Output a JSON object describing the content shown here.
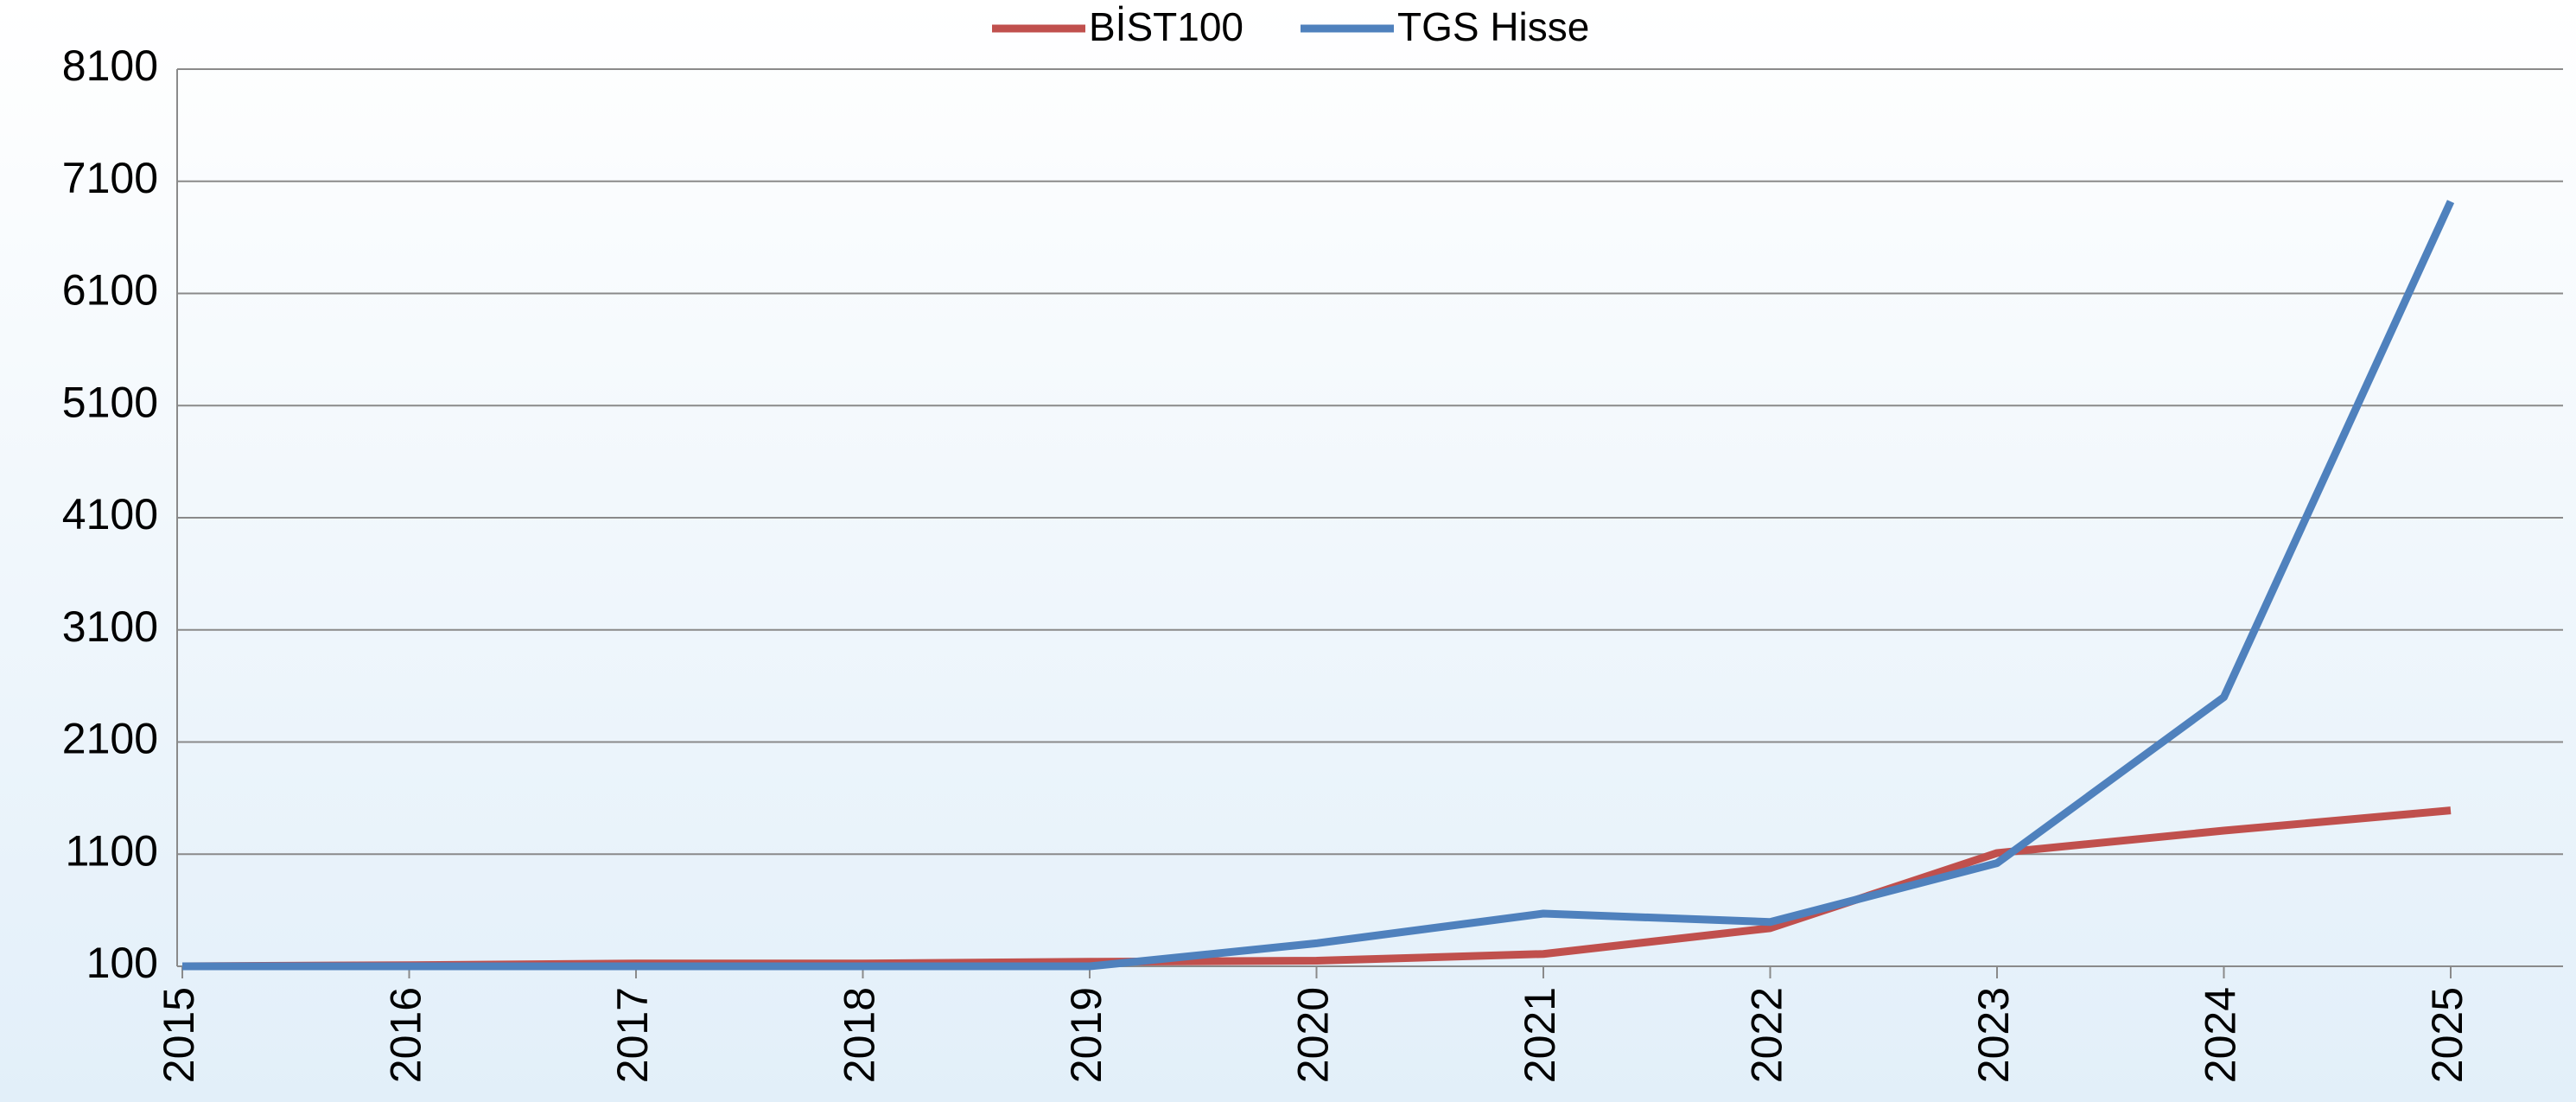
{
  "chart_data": {
    "type": "line",
    "categories": [
      "2015",
      "2016",
      "2017",
      "2018",
      "2019",
      "2020",
      "2021",
      "2022",
      "2023",
      "2024",
      "2025"
    ],
    "series": [
      {
        "name": "BİST100",
        "color": "#c0504d",
        "values": [
          100,
          110,
          125,
          125,
          140,
          150,
          210,
          440,
          1110,
          1310,
          1490
        ]
      },
      {
        "name": "TGS Hisse",
        "color": "#4f81bd",
        "values": [
          100,
          100,
          100,
          100,
          100,
          305,
          570,
          495,
          1020,
          2500,
          6920
        ]
      }
    ],
    "ylim": [
      100,
      8100
    ],
    "yticks": [
      100,
      1100,
      2100,
      3100,
      4100,
      5100,
      6100,
      7100,
      8100
    ],
    "grid": true,
    "legend": "top"
  }
}
